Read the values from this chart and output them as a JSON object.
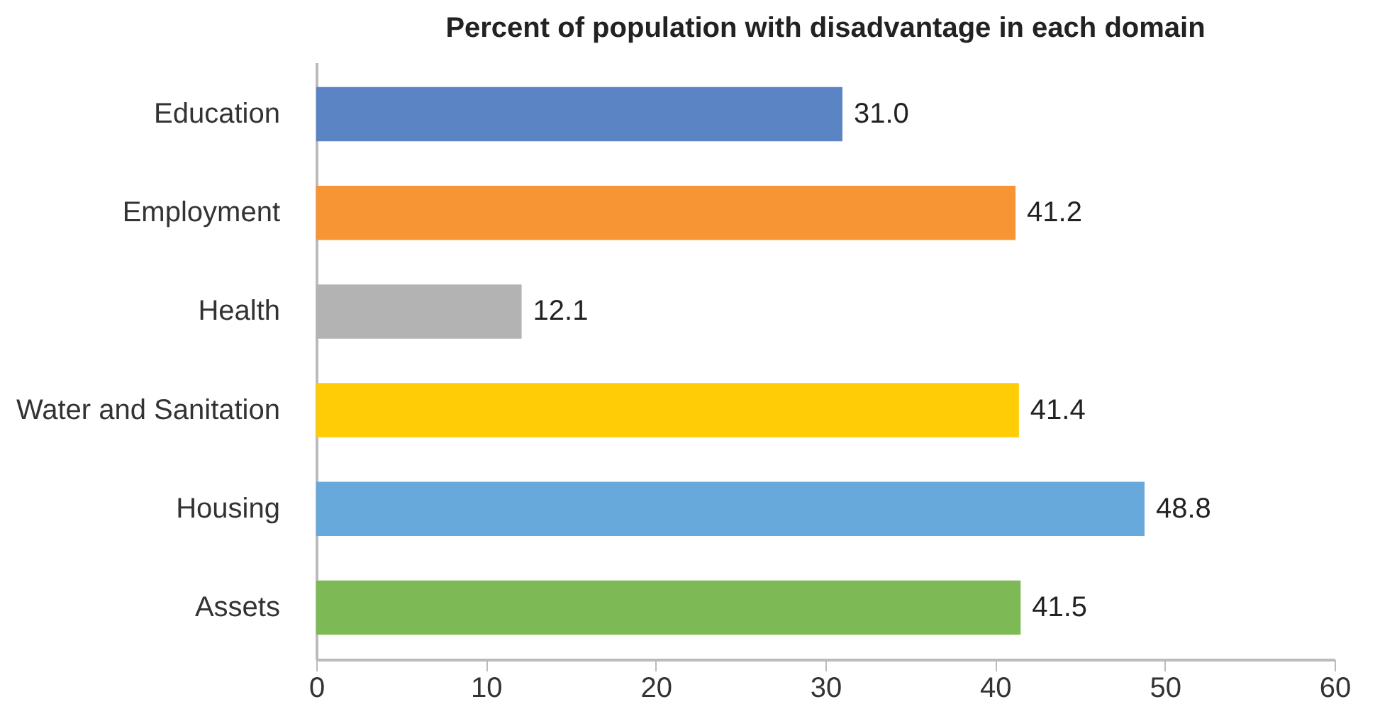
{
  "chart_data": {
    "type": "bar",
    "orientation": "horizontal",
    "title": "Percent of population with disadvantage in each domain",
    "categories": [
      "Education",
      "Employment",
      "Health",
      "Water and Sanitation",
      "Housing",
      "Assets"
    ],
    "values": [
      31.0,
      41.2,
      12.1,
      41.4,
      48.8,
      41.5
    ],
    "colors": [
      "#5b84c4",
      "#f79433",
      "#b3b3b3",
      "#ffcc05",
      "#68a9dc",
      "#7db954"
    ],
    "xlim": [
      0,
      60
    ],
    "xticks": [
      0,
      10,
      20,
      30,
      40,
      50,
      60
    ],
    "value_labels": [
      "31.0",
      "41.2",
      "12.1",
      "41.4",
      "48.8",
      "41.5"
    ],
    "grid": false
  }
}
